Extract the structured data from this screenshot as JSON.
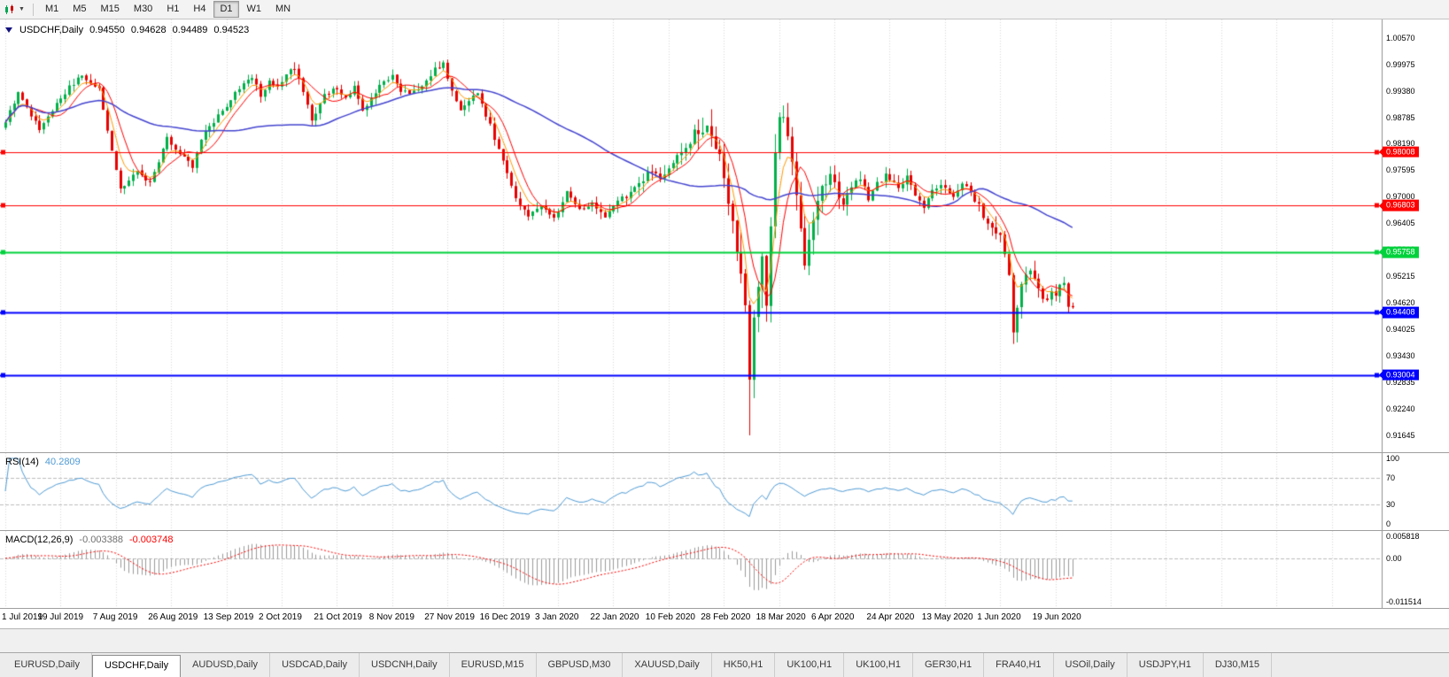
{
  "toolbar": {
    "caret": "▼",
    "timeframes": [
      "M1",
      "M5",
      "M15",
      "M30",
      "H1",
      "H4",
      "D1",
      "W1",
      "MN"
    ],
    "active_timeframe": "D1"
  },
  "chart_header": {
    "symbol": "USDCHF,Daily",
    "open": "0.94550",
    "high": "0.94628",
    "low": "0.94489",
    "close": "0.94523"
  },
  "rsi_header": {
    "label": "RSI(14)",
    "value": "40.2809"
  },
  "macd_header": {
    "label": "MACD(12,26,9)",
    "value_main": "-0.003388",
    "value_signal": "-0.003748"
  },
  "axes": {
    "price_ticks": [
      "1.00570",
      "0.99975",
      "0.99380",
      "0.98785",
      "0.98190",
      "0.97595",
      "0.97000",
      "0.96405",
      "0.95810",
      "0.95215",
      "0.94620",
      "0.94025",
      "0.93430",
      "0.92835",
      "0.92240",
      "0.91645"
    ],
    "dates": [
      "1 Jul 2019",
      "19 Jul 2019",
      "7 Aug 2019",
      "26 Aug 2019",
      "13 Sep 2019",
      "2 Oct 2019",
      "21 Oct 2019",
      "8 Nov 2019",
      "27 Nov 2019",
      "16 Dec 2019",
      "3 Jan 2020",
      "22 Jan 2020",
      "10 Feb 2020",
      "28 Feb 2020",
      "18 Mar 2020",
      "6 Apr 2020",
      "24 Apr 2020",
      "13 May 2020",
      "1 Jun 2020",
      "19 Jun 2020"
    ],
    "rsi_ticks": [
      "100",
      "70",
      "30",
      "0"
    ],
    "macd_ticks": [
      "0.005818",
      "0.00",
      "-0.011514"
    ]
  },
  "tabs": [
    "EURUSD,Daily",
    "USDCHF,Daily",
    "AUDUSD,Daily",
    "USDCAD,Daily",
    "USDCNH,Daily",
    "EURUSD,M15",
    "GBPUSD,M30",
    "XAUUSD,Daily",
    "HK50,H1",
    "UK100,H1",
    "UK100,H1",
    "GER30,H1",
    "FRA40,H1",
    "USOil,Daily",
    "USDJPY,H1",
    "DJ30,M15"
  ],
  "active_tab_index": 1,
  "colors": {
    "background": "#ffffff",
    "grid": "#d9d9d9",
    "axis_line": "#8f8f8f",
    "candle_up": "#00b04a",
    "candle_down": "#e60000",
    "ma_red": "#ff0000",
    "ma_orange": "#ff9900",
    "ma_blue": "#4444d0",
    "rsi_line": "#4f9bd5",
    "level_dash": "#bdbdbd",
    "macd_hist": "#9a9a9a",
    "macd_signal": "#ff0000",
    "tag_text": "#ffffff"
  },
  "chart_data": {
    "type": "candlestick",
    "symbol": "USDCHF",
    "timeframe": "Daily",
    "last_bar": {
      "open": 0.9455,
      "high": 0.94628,
      "low": 0.94489,
      "close": 0.94523
    },
    "n_bars": 252,
    "bars_per_gridline": 13,
    "price_axis_min": 0.91645,
    "price_axis_max": 1.0057,
    "close_anchors": [
      [
        0,
        0.987
      ],
      [
        3,
        0.9935
      ],
      [
        8,
        0.985
      ],
      [
        13,
        0.9925
      ],
      [
        18,
        0.9975
      ],
      [
        22,
        0.994
      ],
      [
        24,
        0.985
      ],
      [
        27,
        0.9715
      ],
      [
        31,
        0.976
      ],
      [
        34,
        0.973
      ],
      [
        38,
        0.983
      ],
      [
        41,
        0.98
      ],
      [
        44,
        0.977
      ],
      [
        47,
        0.985
      ],
      [
        50,
        0.988
      ],
      [
        52,
        0.99
      ],
      [
        55,
        0.9945
      ],
      [
        58,
        0.9965
      ],
      [
        60,
        0.993
      ],
      [
        62,
        0.996
      ],
      [
        64,
        0.9945
      ],
      [
        66,
        0.9975
      ],
      [
        68,
        0.999
      ],
      [
        70,
        0.994
      ],
      [
        72,
        0.987
      ],
      [
        75,
        0.993
      ],
      [
        78,
        0.9945
      ],
      [
        80,
        0.992
      ],
      [
        82,
        0.995
      ],
      [
        84,
        0.989
      ],
      [
        86,
        0.992
      ],
      [
        88,
        0.995
      ],
      [
        91,
        0.997
      ],
      [
        93,
        0.994
      ],
      [
        95,
        0.993
      ],
      [
        98,
        0.995
      ],
      [
        101,
        0.9985
      ],
      [
        103,
        1.0
      ],
      [
        105,
        0.994
      ],
      [
        107,
        0.989
      ],
      [
        109,
        0.9915
      ],
      [
        111,
        0.993
      ],
      [
        114,
        0.986
      ],
      [
        117,
        0.978
      ],
      [
        120,
        0.97
      ],
      [
        123,
        0.966
      ],
      [
        126,
        0.968
      ],
      [
        129,
        0.965
      ],
      [
        130,
        0.966
      ],
      [
        132,
        0.971
      ],
      [
        135,
        0.967
      ],
      [
        138,
        0.969
      ],
      [
        141,
        0.965
      ],
      [
        143,
        0.9685
      ],
      [
        146,
        0.97
      ],
      [
        149,
        0.973
      ],
      [
        152,
        0.976
      ],
      [
        154,
        0.974
      ],
      [
        156,
        0.977
      ],
      [
        159,
        0.981
      ],
      [
        162,
        0.984
      ],
      [
        165,
        0.9848
      ],
      [
        168,
        0.979
      ],
      [
        170,
        0.97
      ],
      [
        172,
        0.959
      ],
      [
        174,
        0.946
      ],
      [
        175,
        0.929
      ],
      [
        176,
        0.942
      ],
      [
        177,
        0.948
      ],
      [
        178,
        0.956
      ],
      [
        179,
        0.946
      ],
      [
        180,
        0.965
      ],
      [
        181,
        0.98
      ],
      [
        182,
        0.987
      ],
      [
        183,
        0.9885
      ],
      [
        184,
        0.984
      ],
      [
        185,
        0.979
      ],
      [
        186,
        0.97
      ],
      [
        187,
        0.964
      ],
      [
        188,
        0.956
      ],
      [
        189,
        0.96
      ],
      [
        190,
        0.966
      ],
      [
        192,
        0.972
      ],
      [
        194,
        0.976
      ],
      [
        195,
        0.973
      ],
      [
        197,
        0.968
      ],
      [
        199,
        0.972
      ],
      [
        201,
        0.9745
      ],
      [
        203,
        0.97
      ],
      [
        205,
        0.973
      ],
      [
        207,
        0.975
      ],
      [
        208,
        0.974
      ],
      [
        210,
        0.972
      ],
      [
        212,
        0.9745
      ],
      [
        214,
        0.97
      ],
      [
        216,
        0.968
      ],
      [
        218,
        0.971
      ],
      [
        220,
        0.973
      ],
      [
        221,
        0.972
      ],
      [
        223,
        0.97
      ],
      [
        225,
        0.973
      ],
      [
        227,
        0.971
      ],
      [
        229,
        0.968
      ],
      [
        231,
        0.964
      ],
      [
        233,
        0.961
      ],
      [
        234,
        0.962
      ],
      [
        235,
        0.958
      ],
      [
        236,
        0.952
      ],
      [
        237,
        0.94
      ],
      [
        238,
        0.946
      ],
      [
        239,
        0.951
      ],
      [
        241,
        0.953
      ],
      [
        243,
        0.949
      ],
      [
        245,
        0.9465
      ],
      [
        246,
        0.949
      ],
      [
        247,
        0.9475
      ],
      [
        248,
        0.95
      ],
      [
        249,
        0.9505
      ],
      [
        250,
        0.9455
      ],
      [
        251,
        0.94523
      ]
    ],
    "overrides": {
      "68": {
        "high": 1.0002
      },
      "103": {
        "high": 1.0006
      },
      "165": {
        "high": 0.9852
      },
      "175": {
        "low": 0.9165,
        "close": 0.929
      },
      "183": {
        "high": 0.9905
      },
      "237": {
        "low": 0.937
      },
      "251": {
        "open": 0.9455,
        "high": 0.94628,
        "low": 0.94489,
        "close": 0.94523
      }
    },
    "moving_averages": [
      {
        "name": "fast-orange",
        "period": 5,
        "kind": "ema",
        "color": "#ff9900",
        "width": 1
      },
      {
        "name": "fast-red",
        "period": 8,
        "kind": "sma",
        "color": "#ff0000",
        "width": 1
      },
      {
        "name": "slow-blue",
        "period": 50,
        "kind": "sma",
        "color": "#4444d0",
        "width": 1.5
      }
    ],
    "horizontal_lines": [
      {
        "price": 0.98008,
        "label": "0.98008",
        "color": "#ff0000",
        "width": 1
      },
      {
        "price": 0.96803,
        "label": "0.96803",
        "color": "#ff0000",
        "width": 1
      },
      {
        "price": 0.95758,
        "label": "0.95758",
        "color": "#00d23c",
        "width": 2
      },
      {
        "price": 0.94408,
        "label": "0.94408",
        "color": "#0000ff",
        "width": 2
      },
      {
        "price": 0.93004,
        "label": "0.93004",
        "color": "#0000ff",
        "width": 2
      }
    ],
    "indicators": [
      {
        "name": "RSI",
        "period": 14,
        "value": 40.2809,
        "levels": [
          70,
          30
        ],
        "range": [
          0,
          100
        ]
      },
      {
        "name": "MACD",
        "fast": 12,
        "slow": 26,
        "signal": 9,
        "value": -0.003388,
        "signal_value": -0.003748,
        "range": [
          -0.011514,
          0.005818
        ]
      }
    ]
  }
}
